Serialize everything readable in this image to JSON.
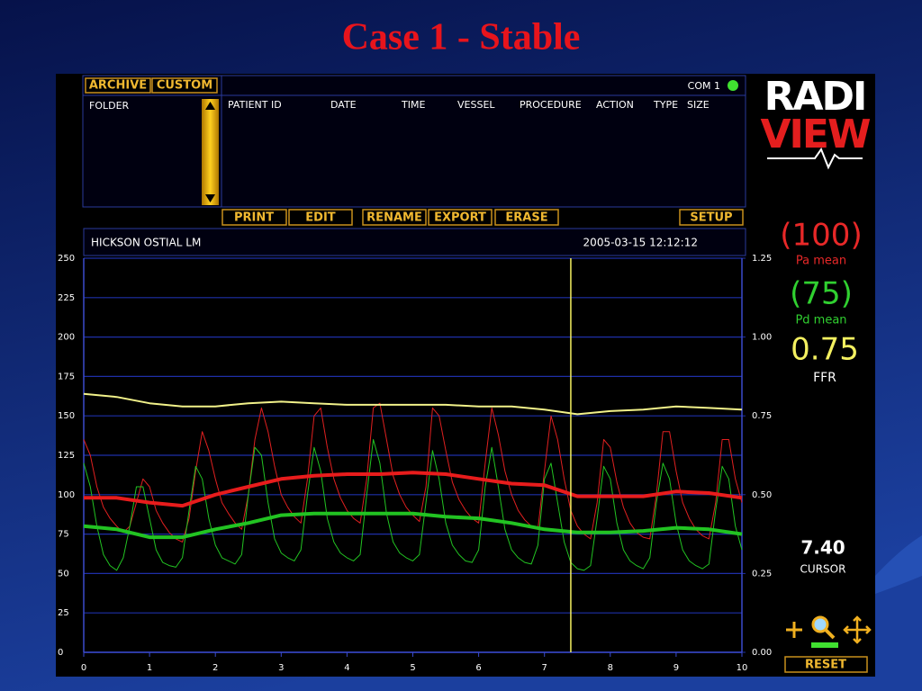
{
  "title": "Case 1 - Stable",
  "archive": {
    "tabs": [
      "ARCHIVE",
      "CUSTOM"
    ],
    "port": "COM 1",
    "folder": "FOLDER",
    "columns": [
      "PATIENT ID",
      "DATE",
      "TIME",
      "VESSEL",
      "PROCEDURE",
      "ACTION",
      "TYPE",
      "SIZE"
    ],
    "buttons": [
      "PRINT",
      "EDIT",
      "RENAME",
      "EXPORT",
      "ERASE"
    ],
    "setup": "SETUP"
  },
  "logo": {
    "top": "RADI",
    "bottom": "VIEW"
  },
  "readouts": {
    "pa": "(100)",
    "pa_label": "Pa mean",
    "pd": "(75)",
    "pd_label": "Pd mean",
    "ffr": "0.75",
    "ffr_label": "FFR",
    "cursor_label": "CURSOR"
  },
  "reset": "RESET",
  "chart_data": {
    "type": "line",
    "title": "HICKSON OSTIAL LM",
    "timestamp": "2005-03-15 12:12:12",
    "xlim": [
      0,
      10
    ],
    "xticks": [
      0,
      1,
      2,
      3,
      4,
      5,
      6,
      7,
      8,
      9,
      10
    ],
    "ylim": [
      0,
      250
    ],
    "yticks": [
      0,
      25,
      50,
      75,
      100,
      125,
      150,
      175,
      200,
      225,
      250
    ],
    "y2lim": [
      0,
      1.25
    ],
    "y2ticks": [
      {
        "value": 0,
        "label": "0.00"
      },
      {
        "value": 0.25,
        "label": "0.25"
      },
      {
        "value": 0.5,
        "label": "0.50"
      },
      {
        "value": 0.75,
        "label": "0.75"
      },
      {
        "value": 1,
        "label": "1.00"
      },
      {
        "value": 1.25,
        "label": "1.25"
      }
    ],
    "grid": true,
    "cursor": {
      "value": 7.4,
      "label": "7.40"
    },
    "series": [
      {
        "color": "#e02020",
        "x": [
          0,
          0.1,
          0.2,
          0.3,
          0.4,
          0.5,
          0.6,
          0.7,
          0.8,
          0.9,
          1,
          1.1,
          1.2,
          1.3,
          1.4,
          1.5,
          1.6,
          1.7,
          1.8,
          1.9,
          2,
          2.1,
          2.2,
          2.3,
          2.4,
          2.5,
          2.6,
          2.7,
          2.8,
          2.9,
          3,
          3.1,
          3.2,
          3.3,
          3.4,
          3.5,
          3.6,
          3.7,
          3.8,
          3.9,
          4,
          4.1,
          4.2,
          4.3,
          4.4,
          4.5,
          4.6,
          4.7,
          4.8,
          4.9,
          5,
          5.1,
          5.2,
          5.3,
          5.4,
          5.5,
          5.6,
          5.7,
          5.8,
          5.9,
          6,
          6.1,
          6.2,
          6.3,
          6.4,
          6.5,
          6.6,
          6.7,
          6.8,
          6.9,
          7,
          7.1,
          7.2,
          7.3,
          7.4,
          7.5,
          7.6,
          7.7,
          7.8,
          7.9,
          8,
          8.1,
          8.2,
          8.3,
          8.4,
          8.5,
          8.6,
          8.7,
          8.8,
          8.9,
          9,
          9.1,
          9.2,
          9.3,
          9.4,
          9.5,
          9.6,
          9.7,
          9.8,
          9.9,
          10
        ],
        "values": [
          135,
          125,
          105,
          92,
          85,
          80,
          76,
          80,
          95,
          110,
          105,
          90,
          82,
          76,
          72,
          70,
          85,
          115,
          140,
          128,
          110,
          95,
          88,
          82,
          78,
          100,
          135,
          155,
          140,
          118,
          100,
          92,
          86,
          82,
          110,
          150,
          155,
          130,
          110,
          98,
          90,
          85,
          82,
          110,
          155,
          158,
          135,
          112,
          100,
          92,
          87,
          83,
          105,
          155,
          150,
          128,
          108,
          97,
          90,
          85,
          82,
          120,
          155,
          138,
          115,
          100,
          90,
          84,
          80,
          78,
          115,
          150,
          135,
          110,
          90,
          80,
          75,
          72,
          95,
          135,
          130,
          108,
          92,
          82,
          76,
          73,
          72,
          100,
          140,
          140,
          115,
          95,
          85,
          78,
          74,
          72,
          95,
          135,
          135,
          110,
          95
        ]
      },
      {
        "color": "#22c322",
        "x": [
          0,
          0.1,
          0.2,
          0.3,
          0.4,
          0.5,
          0.6,
          0.7,
          0.8,
          0.9,
          1,
          1.1,
          1.2,
          1.3,
          1.4,
          1.5,
          1.6,
          1.7,
          1.8,
          1.9,
          2,
          2.1,
          2.2,
          2.3,
          2.4,
          2.5,
          2.6,
          2.7,
          2.8,
          2.9,
          3,
          3.1,
          3.2,
          3.3,
          3.4,
          3.5,
          3.6,
          3.7,
          3.8,
          3.9,
          4,
          4.1,
          4.2,
          4.3,
          4.4,
          4.5,
          4.6,
          4.7,
          4.8,
          4.9,
          5,
          5.1,
          5.2,
          5.3,
          5.4,
          5.5,
          5.6,
          5.7,
          5.8,
          5.9,
          6,
          6.1,
          6.2,
          6.3,
          6.4,
          6.5,
          6.6,
          6.7,
          6.8,
          6.9,
          7,
          7.1,
          7.2,
          7.3,
          7.4,
          7.5,
          7.6,
          7.7,
          7.8,
          7.9,
          8,
          8.1,
          8.2,
          8.3,
          8.4,
          8.5,
          8.6,
          8.7,
          8.8,
          8.9,
          9,
          9.1,
          9.2,
          9.3,
          9.4,
          9.5,
          9.6,
          9.7,
          9.8,
          9.9,
          10
        ],
        "values": [
          120,
          105,
          80,
          62,
          55,
          52,
          60,
          80,
          105,
          105,
          85,
          65,
          57,
          55,
          54,
          60,
          90,
          118,
          110,
          85,
          68,
          60,
          58,
          56,
          62,
          100,
          130,
          125,
          95,
          72,
          63,
          60,
          58,
          65,
          100,
          130,
          115,
          85,
          70,
          63,
          60,
          58,
          62,
          100,
          135,
          120,
          88,
          70,
          63,
          60,
          58,
          62,
          95,
          128,
          110,
          82,
          68,
          62,
          58,
          57,
          65,
          105,
          130,
          105,
          78,
          65,
          60,
          57,
          56,
          68,
          110,
          120,
          95,
          70,
          57,
          53,
          52,
          55,
          85,
          118,
          110,
          82,
          65,
          58,
          55,
          53,
          60,
          95,
          120,
          110,
          82,
          65,
          58,
          55,
          53,
          56,
          90,
          118,
          110,
          80,
          65
        ]
      },
      {
        "color": "#e81c1c",
        "x": [
          0,
          0.5,
          1,
          1.5,
          2,
          2.5,
          3,
          3.5,
          4,
          4.5,
          5,
          5.5,
          6,
          6.5,
          7,
          7.5,
          8,
          8.5,
          9,
          9.5,
          10
        ],
        "values": [
          98,
          98,
          95,
          93,
          100,
          105,
          110,
          112,
          113,
          113,
          114,
          113,
          110,
          107,
          106,
          99,
          99,
          99,
          102,
          101,
          98
        ]
      },
      {
        "color": "#22c322",
        "x": [
          0,
          0.5,
          1,
          1.5,
          2,
          2.5,
          3,
          3.5,
          4,
          4.5,
          5,
          5.5,
          6,
          6.5,
          7,
          7.5,
          8,
          8.5,
          9,
          9.5,
          10
        ],
        "values": [
          80,
          78,
          73,
          73,
          78,
          82,
          87,
          88,
          88,
          88,
          88,
          86,
          85,
          82,
          78,
          76,
          76,
          77,
          79,
          78,
          75
        ]
      },
      {
        "color": "#f2f28a",
        "axis": "y2",
        "x": [
          0,
          0.5,
          1,
          1.5,
          2,
          2.5,
          3,
          3.5,
          4,
          4.5,
          5,
          5.5,
          6,
          6.5,
          7,
          7.5,
          8,
          8.5,
          9,
          9.5,
          10
        ],
        "values": [
          0.82,
          0.81,
          0.79,
          0.78,
          0.78,
          0.79,
          0.795,
          0.79,
          0.785,
          0.785,
          0.785,
          0.785,
          0.78,
          0.78,
          0.77,
          0.755,
          0.765,
          0.77,
          0.78,
          0.775,
          0.77
        ]
      }
    ]
  }
}
